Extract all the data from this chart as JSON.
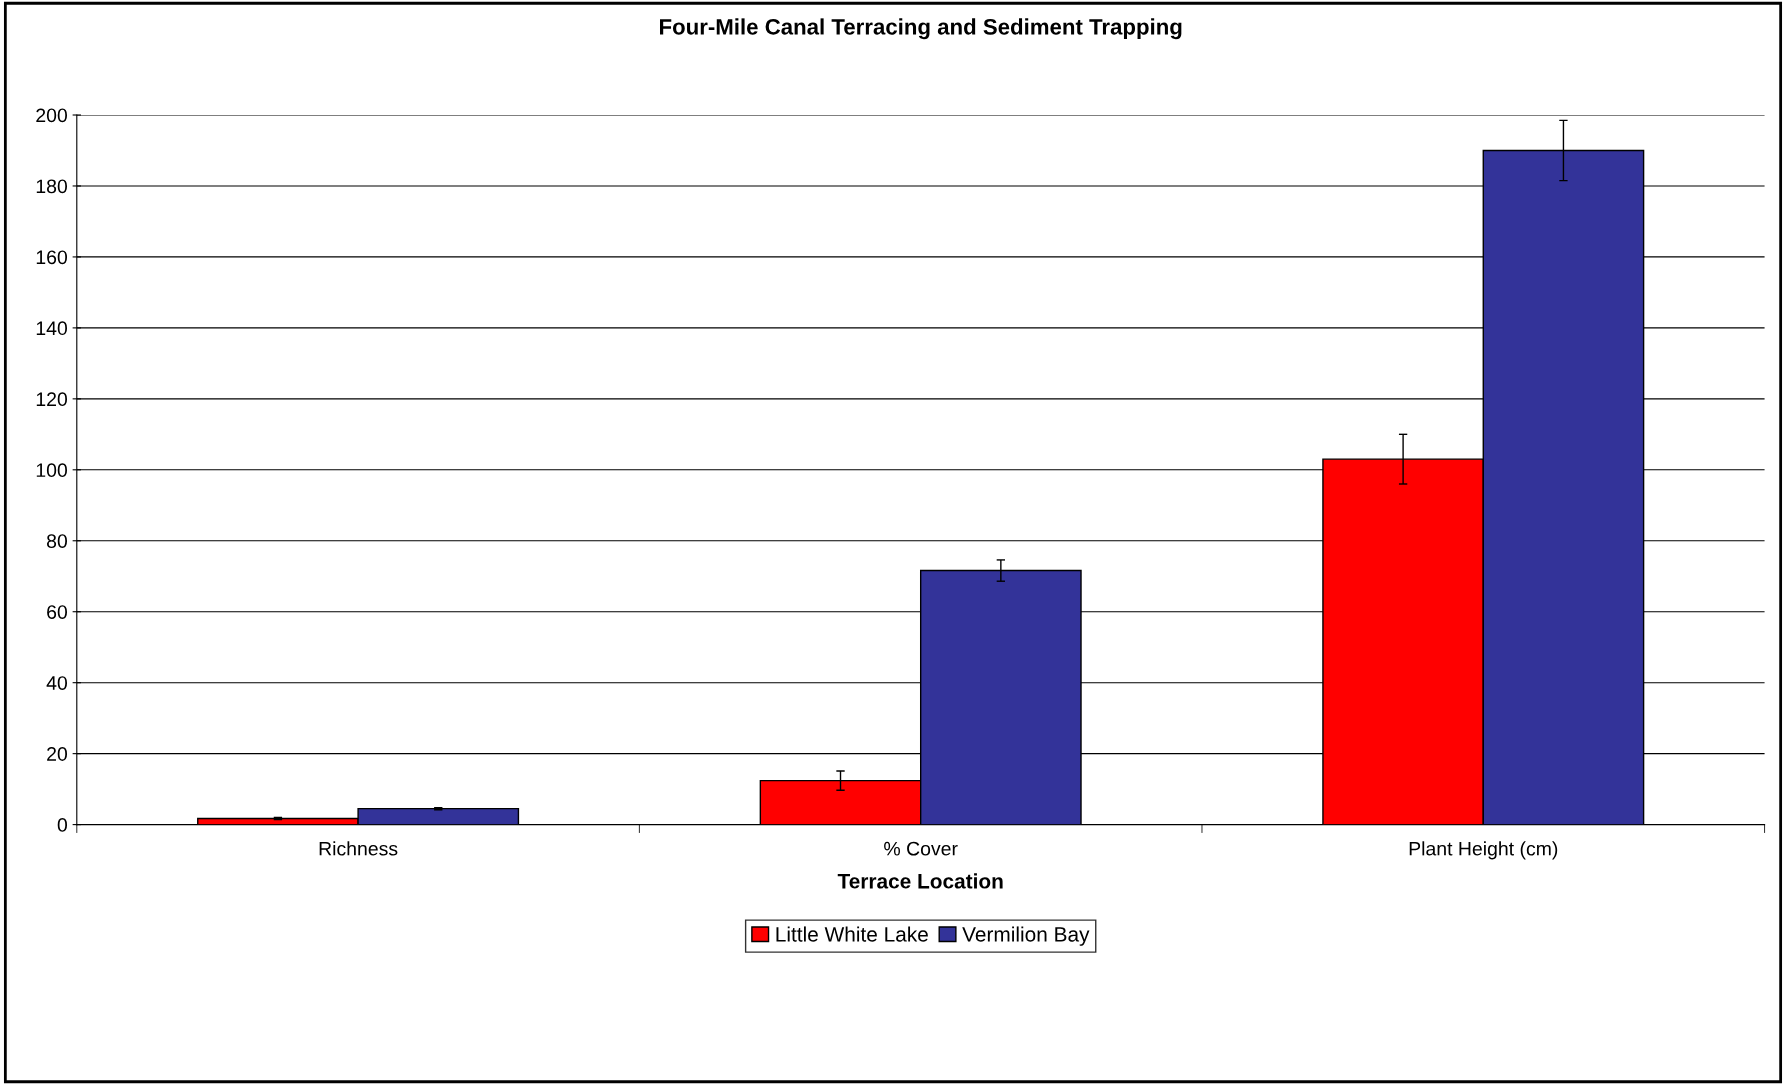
{
  "chart_data": {
    "type": "bar",
    "title": "Four-Mile Canal Terracing and Sediment Trapping",
    "xlabel": "Terrace Location",
    "categories": [
      "Richness",
      "% Cover",
      "Plant Height (cm)"
    ],
    "series": [
      {
        "name": "Little White Lake",
        "color": "#ff0000",
        "values": [
          1.7,
          12.4,
          103
        ],
        "errors": [
          0.3,
          2.7,
          7
        ]
      },
      {
        "name": "Vermilion Bay",
        "color": "#333399",
        "values": [
          4.5,
          71.6,
          190
        ],
        "errors": [
          0.3,
          3,
          8.5
        ]
      }
    ],
    "ylim": [
      0,
      200
    ],
    "yticks": [
      0,
      20,
      40,
      60,
      80,
      100,
      120,
      140,
      160,
      180,
      200
    ],
    "grid": "y",
    "legend": "bottom"
  }
}
